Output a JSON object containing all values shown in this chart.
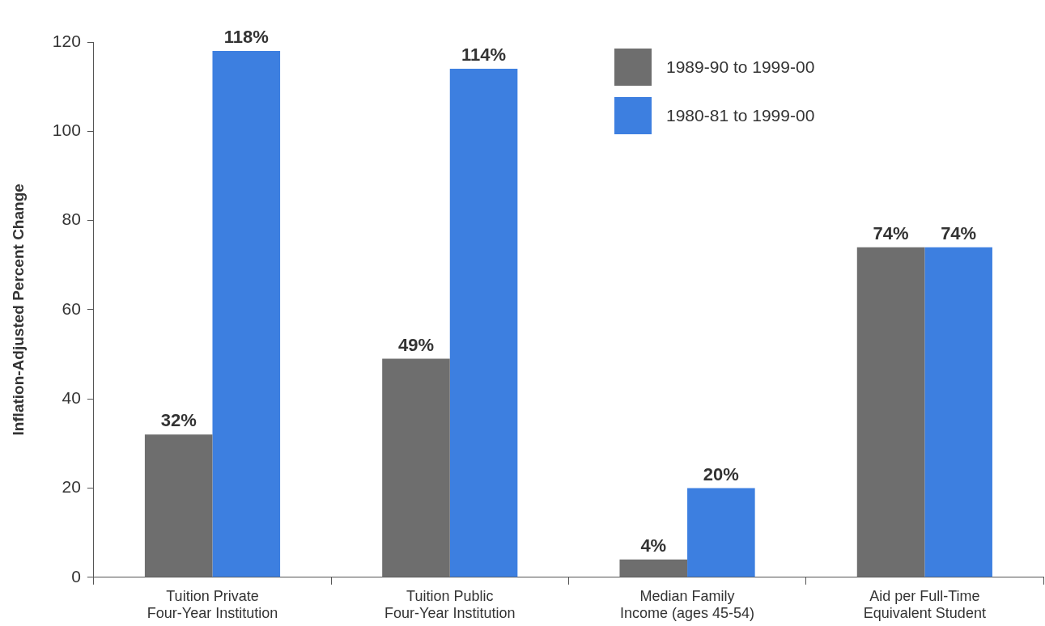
{
  "chart_data": {
    "type": "bar",
    "ylabel": "Inflation-Adjusted Percent Change",
    "categories": [
      "Tuition Private\nFour-Year Institution",
      "Tuition Public\nFour-Year Institution",
      "Median Family\nIncome (ages 45-54)",
      "Aid per Full-Time\nEquivalent Student"
    ],
    "series": [
      {
        "name": "1989-90 to 1999-00",
        "color": "#6e6e6e",
        "values": [
          32,
          49,
          4,
          74
        ],
        "value_labels": [
          "32%",
          "49%",
          "4%",
          "74%"
        ]
      },
      {
        "name": "1980-81 to 1999-00",
        "color": "#3d7fe0",
        "values": [
          118,
          114,
          20,
          74
        ],
        "value_labels": [
          "118%",
          "114%",
          "20%",
          "74%"
        ]
      }
    ],
    "ylim": [
      0,
      120
    ],
    "yticks": [
      0,
      20,
      40,
      60,
      80,
      100,
      120
    ],
    "grid": false,
    "legend": "top right"
  }
}
